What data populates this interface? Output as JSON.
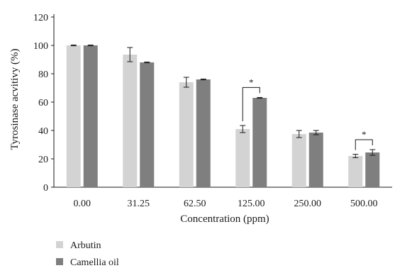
{
  "chart_data": {
    "type": "bar",
    "title": "",
    "xlabel": "Concentration (ppm)",
    "ylabel": "Tyrosinase acvitivy (%)",
    "ylim": [
      0,
      120
    ],
    "yticks": [
      0,
      20,
      40,
      60,
      80,
      100,
      120
    ],
    "categories": [
      "0.00",
      "31.25",
      "62.50",
      "125.00",
      "250.00",
      "500.00"
    ],
    "series": [
      {
        "name": "Arbutin",
        "color": "#d3d3d3",
        "values": [
          100,
          93.5,
          74,
          41,
          37.5,
          22
        ],
        "errors": [
          0.3,
          5,
          3.5,
          2.5,
          2.5,
          1.2
        ]
      },
      {
        "name": "Camellia oil",
        "color": "#7f7f7f",
        "values": [
          100,
          88,
          76,
          63,
          38.5,
          24.5
        ],
        "errors": [
          0.3,
          0.3,
          0.3,
          0.3,
          1.5,
          2
        ]
      }
    ],
    "significance": [
      {
        "category": "125.00",
        "label": "*"
      },
      {
        "category": "500.00",
        "label": "*"
      }
    ],
    "grid": false,
    "legend_position": "bottom-left"
  }
}
